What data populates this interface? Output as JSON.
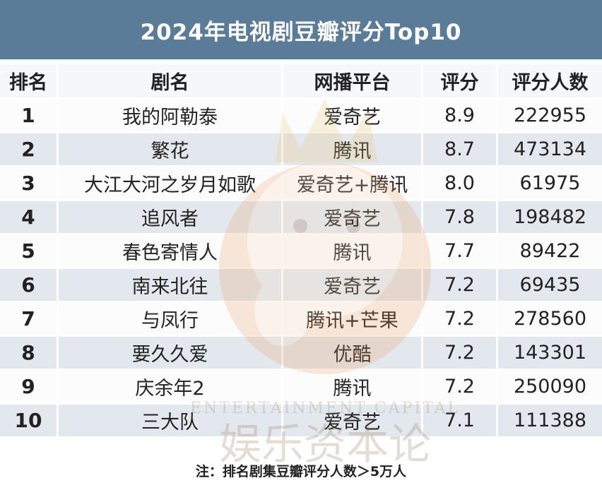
{
  "title": "2024年电视剧豆瓣评分Top10",
  "headers": [
    "排名",
    "剧名",
    "网播平台",
    "评分",
    "评分人数"
  ],
  "rows": [
    {
      "rank": "1",
      "name": "我的阿勒泰",
      "platform": "爱奇艺",
      "score": "8.9",
      "votes": "222955"
    },
    {
      "rank": "2",
      "name": "繁花",
      "platform": "腾讯",
      "score": "8.7",
      "votes": "473134"
    },
    {
      "rank": "3",
      "name": "大江大河之岁月如歌",
      "platform": "爱奇艺+腾讯",
      "score": "8.0",
      "votes": "61975"
    },
    {
      "rank": "4",
      "name": "追风者",
      "platform": "爱奇艺",
      "score": "7.8",
      "votes": "198482"
    },
    {
      "rank": "5",
      "name": "春色寄情人",
      "platform": "腾讯",
      "score": "7.7",
      "votes": "89422"
    },
    {
      "rank": "6",
      "name": "南来北往",
      "platform": "爱奇艺",
      "score": "7.2",
      "votes": "69435"
    },
    {
      "rank": "7",
      "name": "与凤行",
      "platform": "腾讯+芒果",
      "score": "7.2",
      "votes": "278560"
    },
    {
      "rank": "8",
      "name": "要久久爱",
      "platform": "优酷",
      "score": "7.2",
      "votes": "143301"
    },
    {
      "rank": "9",
      "name": "庆余年2",
      "platform": "腾讯",
      "score": "7.2",
      "votes": "250090"
    },
    {
      "rank": "10",
      "name": "三大队",
      "platform": "爱奇艺",
      "score": "7.1",
      "votes": "111388"
    }
  ],
  "footnote": "注：排名剧集豆瓣评分人数＞5万人",
  "watermark_text": "ENTERTAINMENT CAPITAL",
  "watermark_cn": "娱乐资本论",
  "colors": {
    "title_bg": "#5a7c99",
    "row_alt": "#e3e8ee",
    "row": "#f6f7f9"
  }
}
